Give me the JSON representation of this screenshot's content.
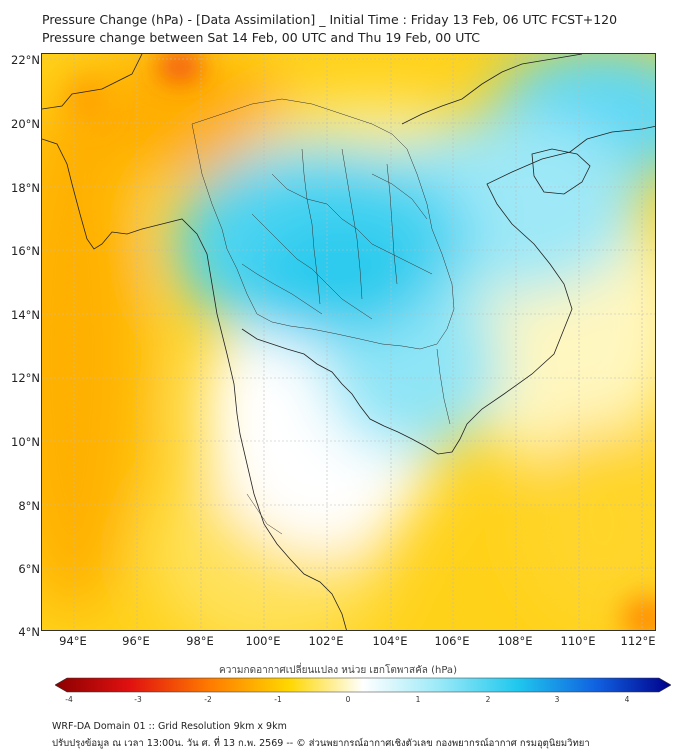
{
  "title_line1": "Pressure Change (hPa) - [Data Assimilation] _ Initial Time : Friday 13 Feb, 06 UTC FCST+120",
  "title_line2": "Pressure change between Sat 14 Feb, 00 UTC and Thu 19 Feb, 00 UTC",
  "latitude_labels": [
    "22°N",
    "20°N",
    "18°N",
    "16°N",
    "14°N",
    "12°N",
    "10°N",
    "8°N",
    "6°N",
    "4°N"
  ],
  "longitude_labels": [
    "94°E",
    "96°E",
    "98°E",
    "100°E",
    "102°E",
    "104°E",
    "106°E",
    "108°E",
    "110°E",
    "112°E"
  ],
  "colorbar": {
    "title": "ความกดอากาศเปลี่ยนแปลง หน่วย เฮกโตพาสคัล (hPa)",
    "ticks": [
      "-4",
      "-3",
      "-2",
      "-1",
      "0",
      "1",
      "2",
      "3",
      "4"
    ],
    "colors": {
      "strong_fall": "#8b0000",
      "fall": "#ffd700",
      "neutral": "#ffffff",
      "rise": "#40d4f0",
      "strong_rise": "#00008b"
    }
  },
  "footer_line1": "WRF-DA Domain 01 :: Grid Resolution 9km x 9km",
  "footer_line2": "ปรับปรุงข้อมูล ณ เวลา 13:00น. วัน ศ. ที่ 13 ก.พ. 2569 -- © ส่วนพยากรณ์อากาศเชิงตัวเลข กองพยากรณ์อากาศ กรมอุตุนิยมวิทยา"
}
